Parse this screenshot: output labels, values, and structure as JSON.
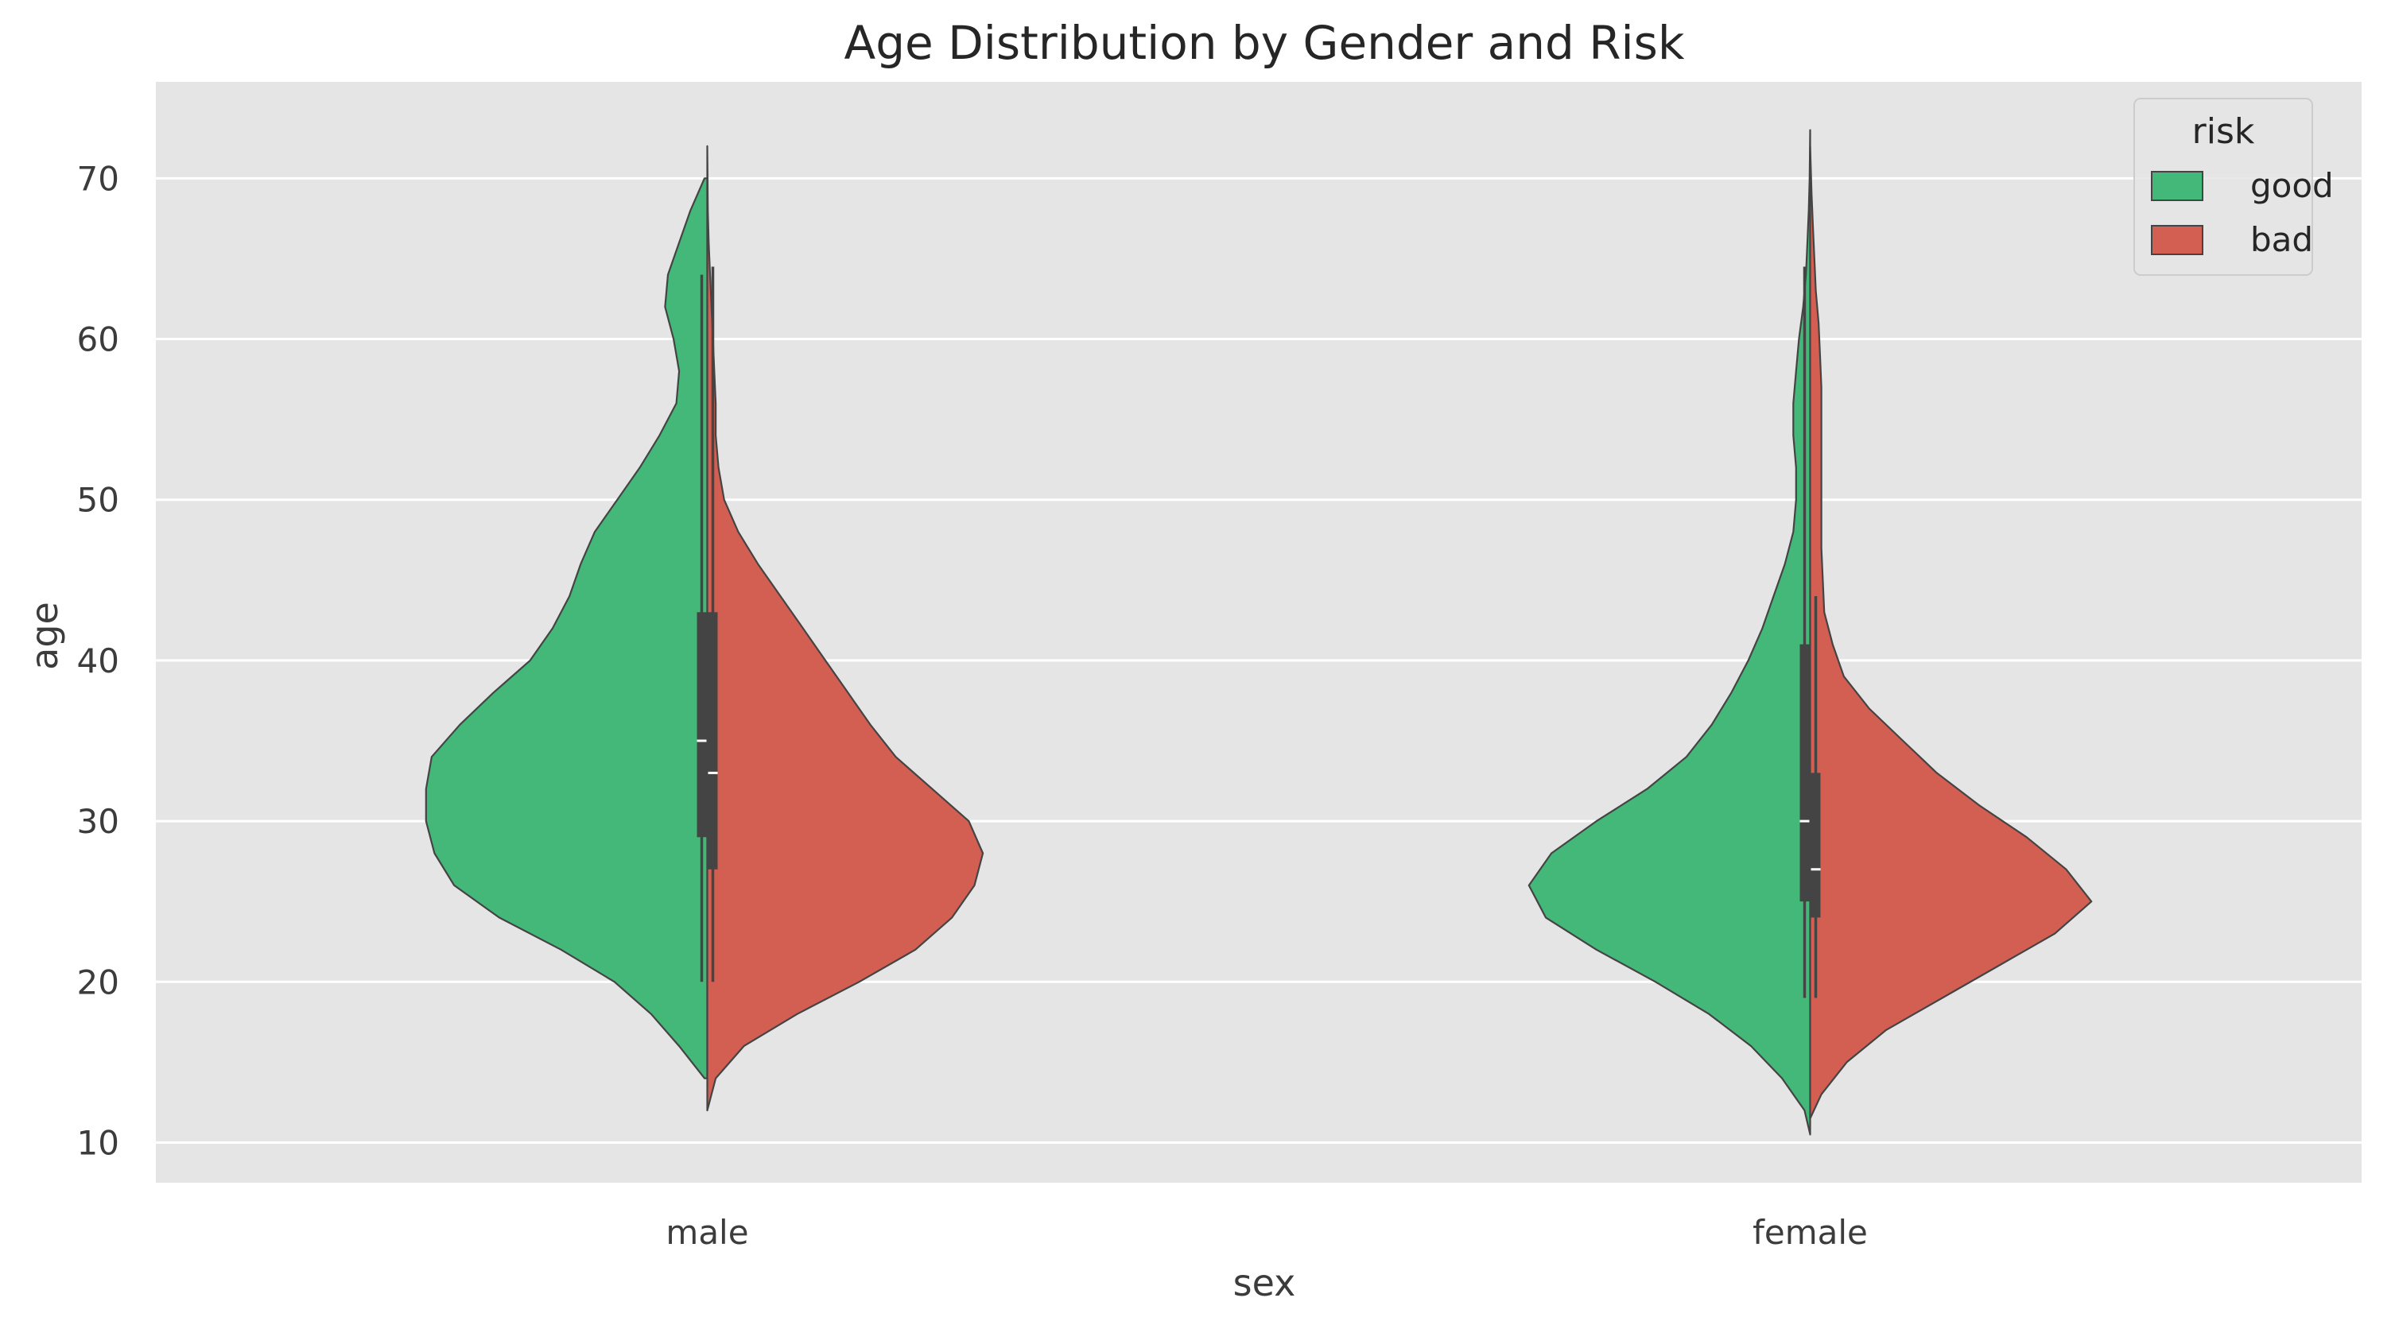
{
  "chart_data": {
    "type": "violin",
    "title": "Age Distribution by Gender and Risk",
    "xlabel": "sex",
    "ylabel": "age",
    "categories": [
      "male",
      "female"
    ],
    "ylim": [
      7.5,
      76
    ],
    "yticks": [
      10,
      20,
      30,
      40,
      50,
      60,
      70
    ],
    "grid": true,
    "split": true,
    "legend": {
      "title": "risk",
      "position": "top-right"
    },
    "series": [
      {
        "name": "good",
        "color": "#44b878",
        "groups": [
          {
            "category": "male",
            "profile": [
              [
                14,
                0.01
              ],
              [
                16,
                0.1
              ],
              [
                18,
                0.2
              ],
              [
                20,
                0.33
              ],
              [
                22,
                0.52
              ],
              [
                24,
                0.74
              ],
              [
                26,
                0.9
              ],
              [
                28,
                0.97
              ],
              [
                30,
                1.0
              ],
              [
                32,
                1.0
              ],
              [
                34,
                0.98
              ],
              [
                36,
                0.88
              ],
              [
                38,
                0.76
              ],
              [
                40,
                0.63
              ],
              [
                42,
                0.55
              ],
              [
                44,
                0.49
              ],
              [
                46,
                0.45
              ],
              [
                48,
                0.4
              ],
              [
                50,
                0.32
              ],
              [
                52,
                0.24
              ],
              [
                54,
                0.17
              ],
              [
                56,
                0.11
              ],
              [
                58,
                0.1
              ],
              [
                60,
                0.12
              ],
              [
                62,
                0.15
              ],
              [
                64,
                0.14
              ],
              [
                66,
                0.1
              ],
              [
                68,
                0.06
              ],
              [
                70,
                0.01
              ]
            ],
            "box": {
              "whisker_low": 20,
              "q1": 29,
              "median": 35,
              "q3": 43,
              "whisker_high": 64
            }
          },
          {
            "category": "female",
            "profile": [
              [
                10.5,
                0.0
              ],
              [
                12,
                0.02
              ],
              [
                14,
                0.1
              ],
              [
                16,
                0.21
              ],
              [
                18,
                0.36
              ],
              [
                20,
                0.55
              ],
              [
                22,
                0.76
              ],
              [
                24,
                0.94
              ],
              [
                26,
                1.0
              ],
              [
                28,
                0.92
              ],
              [
                30,
                0.76
              ],
              [
                32,
                0.58
              ],
              [
                34,
                0.44
              ],
              [
                36,
                0.35
              ],
              [
                38,
                0.28
              ],
              [
                40,
                0.22
              ],
              [
                42,
                0.17
              ],
              [
                44,
                0.13
              ],
              [
                46,
                0.09
              ],
              [
                48,
                0.06
              ],
              [
                50,
                0.05
              ],
              [
                52,
                0.05
              ],
              [
                54,
                0.06
              ],
              [
                56,
                0.06
              ],
              [
                58,
                0.05
              ],
              [
                60,
                0.04
              ],
              [
                62,
                0.025
              ],
              [
                64,
                0.015
              ],
              [
                66,
                0.01
              ],
              [
                68,
                0.005
              ],
              [
                70,
                0.002
              ],
              [
                73,
                0.0
              ]
            ],
            "box": {
              "whisker_low": 19,
              "q1": 25,
              "median": 30,
              "q3": 41,
              "whisker_high": 64.5
            }
          }
        ]
      },
      {
        "name": "bad",
        "color": "#d35f52",
        "groups": [
          {
            "category": "male",
            "profile": [
              [
                12,
                0.0
              ],
              [
                14,
                0.03
              ],
              [
                16,
                0.13
              ],
              [
                18,
                0.32
              ],
              [
                20,
                0.54
              ],
              [
                22,
                0.74
              ],
              [
                24,
                0.87
              ],
              [
                26,
                0.95
              ],
              [
                28,
                0.98
              ],
              [
                30,
                0.93
              ],
              [
                32,
                0.8
              ],
              [
                34,
                0.67
              ],
              [
                36,
                0.58
              ],
              [
                38,
                0.5
              ],
              [
                40,
                0.42
              ],
              [
                42,
                0.34
              ],
              [
                44,
                0.26
              ],
              [
                46,
                0.18
              ],
              [
                48,
                0.11
              ],
              [
                50,
                0.06
              ],
              [
                52,
                0.04
              ],
              [
                54,
                0.03
              ],
              [
                56,
                0.03
              ],
              [
                58,
                0.025
              ],
              [
                60,
                0.02
              ],
              [
                62,
                0.015
              ],
              [
                64,
                0.01
              ],
              [
                66,
                0.005
              ],
              [
                68,
                0.002
              ],
              [
                72,
                0.0
              ]
            ],
            "box": {
              "whisker_low": 20,
              "q1": 27,
              "median": 33,
              "q3": 43,
              "whisker_high": 64.5
            }
          },
          {
            "category": "female",
            "profile": [
              [
                11.5,
                0.0
              ],
              [
                13,
                0.04
              ],
              [
                15,
                0.13
              ],
              [
                17,
                0.27
              ],
              [
                19,
                0.47
              ],
              [
                21,
                0.67
              ],
              [
                23,
                0.87
              ],
              [
                25,
                1.0
              ],
              [
                27,
                0.91
              ],
              [
                29,
                0.77
              ],
              [
                31,
                0.6
              ],
              [
                33,
                0.45
              ],
              [
                35,
                0.33
              ],
              [
                37,
                0.21
              ],
              [
                39,
                0.12
              ],
              [
                41,
                0.08
              ],
              [
                43,
                0.05
              ],
              [
                45,
                0.045
              ],
              [
                47,
                0.04
              ],
              [
                49,
                0.04
              ],
              [
                51,
                0.04
              ],
              [
                53,
                0.04
              ],
              [
                55,
                0.04
              ],
              [
                57,
                0.04
              ],
              [
                59,
                0.035
              ],
              [
                61,
                0.03
              ],
              [
                63,
                0.02
              ],
              [
                65,
                0.015
              ],
              [
                67,
                0.01
              ],
              [
                69,
                0.005
              ],
              [
                72,
                0.0
              ]
            ],
            "box": {
              "whisker_low": 19,
              "q1": 24,
              "median": 27,
              "q3": 33,
              "whisker_high": 44
            }
          }
        ]
      }
    ]
  }
}
